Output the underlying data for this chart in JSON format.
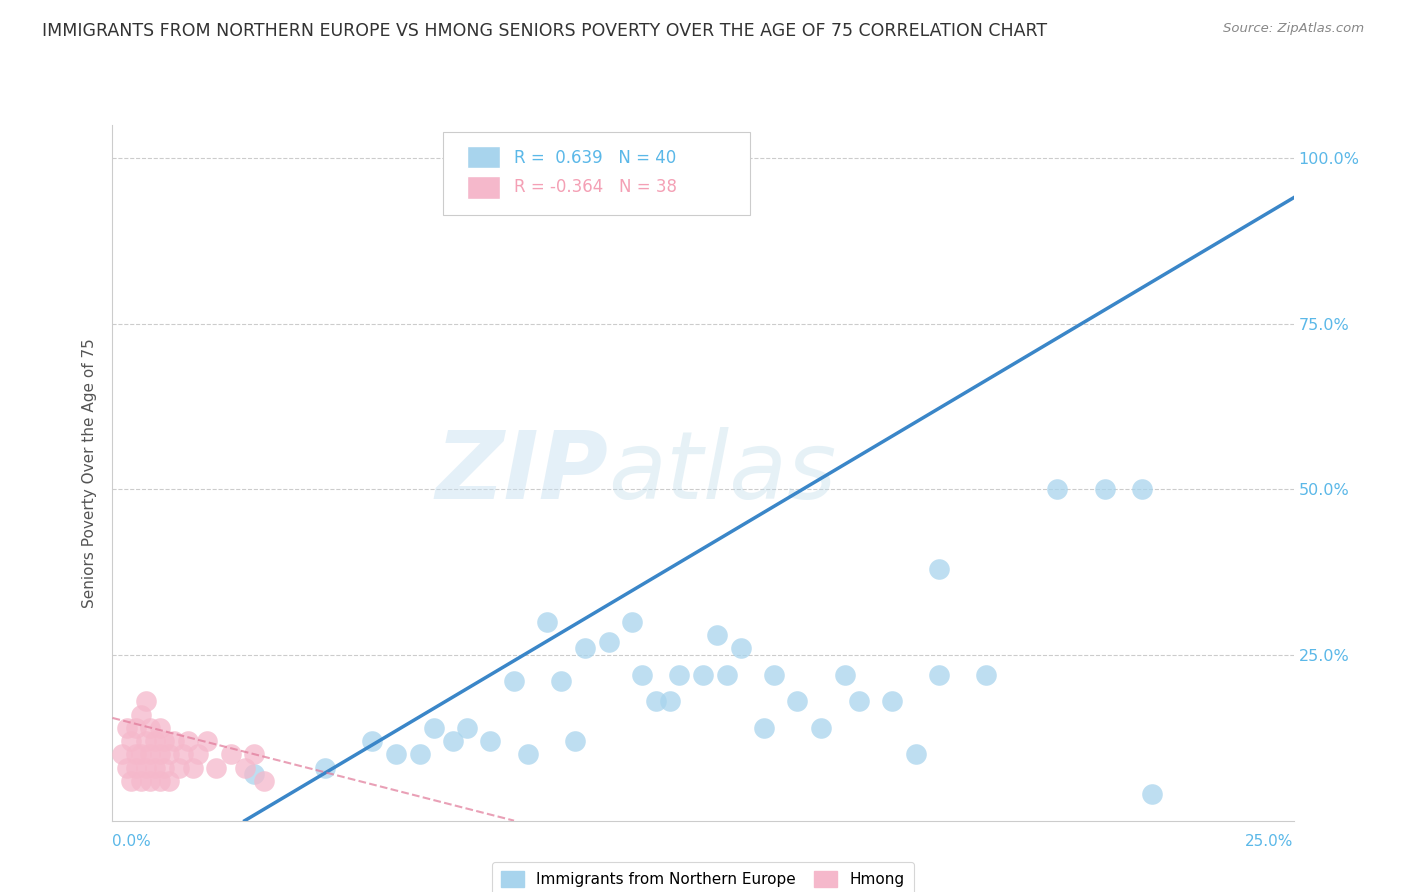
{
  "title": "IMMIGRANTS FROM NORTHERN EUROPE VS HMONG SENIORS POVERTY OVER THE AGE OF 75 CORRELATION CHART",
  "source": "Source: ZipAtlas.com",
  "xlabel_bottom_left": "0.0%",
  "xlabel_bottom_right": "25.0%",
  "ylabel": "Seniors Poverty Over the Age of 75",
  "yticks": [
    0.0,
    0.25,
    0.5,
    0.75,
    1.0
  ],
  "ytick_labels": [
    "",
    "25.0%",
    "50.0%",
    "75.0%",
    "100.0%"
  ],
  "xlim": [
    0.0,
    0.25
  ],
  "ylim": [
    0.0,
    1.05
  ],
  "legend_blue_r": "0.639",
  "legend_blue_n": "40",
  "legend_pink_r": "-0.364",
  "legend_pink_n": "38",
  "legend_label_blue": "Immigrants from Northern Europe",
  "legend_label_pink": "Hmong",
  "blue_color": "#a8d4ed",
  "pink_color": "#f5b8cb",
  "blue_line_color": "#3a86c8",
  "pink_line_color": "#e07898",
  "watermark_zip": "ZIP",
  "watermark_atlas": "atlas",
  "blue_scatter_x": [
    0.03,
    0.045,
    0.055,
    0.06,
    0.065,
    0.068,
    0.072,
    0.075,
    0.08,
    0.085,
    0.088,
    0.092,
    0.095,
    0.098,
    0.1,
    0.105,
    0.11,
    0.112,
    0.115,
    0.118,
    0.12,
    0.125,
    0.128,
    0.13,
    0.133,
    0.138,
    0.14,
    0.145,
    0.15,
    0.155,
    0.158,
    0.165,
    0.17,
    0.175,
    0.185,
    0.2,
    0.21,
    0.218,
    0.175,
    0.22
  ],
  "blue_scatter_y": [
    0.07,
    0.08,
    0.12,
    0.1,
    0.1,
    0.14,
    0.12,
    0.14,
    0.12,
    0.21,
    0.1,
    0.3,
    0.21,
    0.12,
    0.26,
    0.27,
    0.3,
    0.22,
    0.18,
    0.18,
    0.22,
    0.22,
    0.28,
    0.22,
    0.26,
    0.14,
    0.22,
    0.18,
    0.14,
    0.22,
    0.18,
    0.18,
    0.1,
    0.22,
    0.22,
    0.5,
    0.5,
    0.5,
    0.38,
    0.04
  ],
  "pink_scatter_x": [
    0.002,
    0.003,
    0.003,
    0.004,
    0.004,
    0.005,
    0.005,
    0.005,
    0.006,
    0.006,
    0.006,
    0.007,
    0.007,
    0.007,
    0.008,
    0.008,
    0.008,
    0.009,
    0.009,
    0.01,
    0.01,
    0.01,
    0.011,
    0.011,
    0.012,
    0.012,
    0.013,
    0.014,
    0.015,
    0.016,
    0.017,
    0.018,
    0.02,
    0.022,
    0.025,
    0.028,
    0.03,
    0.032
  ],
  "pink_scatter_y": [
    0.1,
    0.08,
    0.14,
    0.06,
    0.12,
    0.08,
    0.1,
    0.14,
    0.06,
    0.1,
    0.16,
    0.08,
    0.12,
    0.18,
    0.06,
    0.1,
    0.14,
    0.08,
    0.12,
    0.06,
    0.1,
    0.14,
    0.08,
    0.12,
    0.06,
    0.1,
    0.12,
    0.08,
    0.1,
    0.12,
    0.08,
    0.1,
    0.12,
    0.08,
    0.1,
    0.08,
    0.1,
    0.06
  ],
  "blue_trendline_x": [
    0.028,
    0.25
  ],
  "blue_trendline_y": [
    0.0,
    0.94
  ],
  "pink_trendline_x": [
    0.0,
    0.085
  ],
  "pink_trendline_y": [
    0.155,
    0.0
  ]
}
